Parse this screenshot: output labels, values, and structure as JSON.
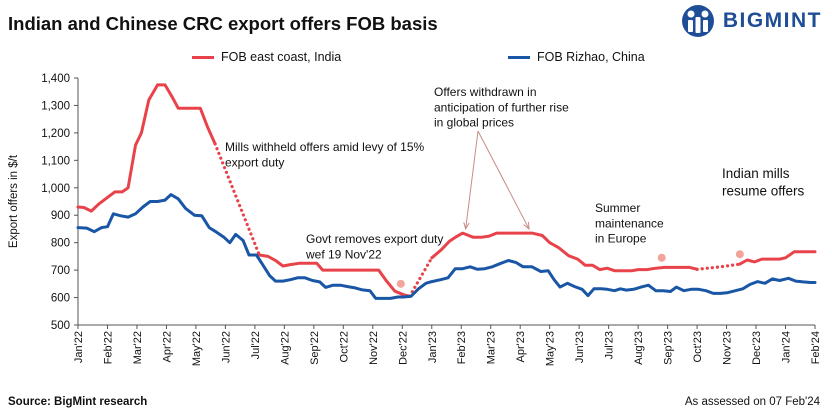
{
  "header": {
    "title": "Indian and Chinese CRC export offers FOB basis",
    "brand": "BIGMINT"
  },
  "footer": {
    "source": "Source: BigMint  research",
    "assessed": "As assessed on 07 Feb'24"
  },
  "colors": {
    "india": "#e8434a",
    "china": "#1a56a6",
    "dots": "#f2a49a"
  },
  "chart_data": {
    "type": "line",
    "title": "Indian and Chinese CRC export offers FOB basis",
    "xlabel": "",
    "ylabel": "Export offers in $/t",
    "ylim": [
      500,
      1400
    ],
    "yticks": [
      500,
      600,
      700,
      800,
      900,
      1000,
      1100,
      1200,
      1300,
      1400
    ],
    "ytick_labels": [
      "500",
      "600",
      "700",
      "800",
      "900",
      "1,000",
      "1,100",
      "1,200",
      "1,300",
      "1,400"
    ],
    "grid": false,
    "legend_position": "top",
    "x_tick_labels": [
      "Jan'22",
      "Feb'22",
      "Mar'22",
      "Apr'22",
      "May'22",
      "Jun'22",
      "Jul'22",
      "Aug'22",
      "Sep'22",
      "Oct'22",
      "Nov'22",
      "Dec'22",
      "Jan'23",
      "Feb'23",
      "Mar'23",
      "Apr'23",
      "May'23",
      "Jun'23",
      "Jul'23",
      "Aug'23",
      "Sep'23",
      "Oct'23",
      "Nov'23",
      "Dec'23",
      "Jan'24",
      "Feb'24"
    ],
    "series": [
      {
        "name": "FOB east coast, India",
        "segments": [
          {
            "style": "solid",
            "points": [
              [
                0,
                930
              ],
              [
                0.2,
                928
              ],
              [
                0.45,
                915
              ],
              [
                0.7,
                940
              ],
              [
                1.0,
                965
              ],
              [
                1.25,
                985
              ],
              [
                1.5,
                985
              ],
              [
                1.7,
                1000
              ],
              [
                1.95,
                1155
              ],
              [
                2.15,
                1200
              ],
              [
                2.4,
                1320
              ],
              [
                2.7,
                1375
              ],
              [
                2.95,
                1375
              ],
              [
                3.2,
                1330
              ],
              [
                3.4,
                1290
              ],
              [
                3.7,
                1290
              ],
              [
                4.0,
                1290
              ],
              [
                4.15,
                1290
              ],
              [
                4.4,
                1220
              ],
              [
                4.65,
                1160
              ]
            ]
          },
          {
            "style": "dotted",
            "points": [
              [
                4.65,
                1160
              ],
              [
                6.15,
                755
              ]
            ]
          },
          {
            "style": "solid",
            "points": [
              [
                6.15,
                755
              ],
              [
                6.45,
                750
              ],
              [
                6.7,
                735
              ],
              [
                6.95,
                715
              ],
              [
                7.2,
                720
              ],
              [
                7.5,
                725
              ],
              [
                7.8,
                725
              ],
              [
                8.1,
                725
              ],
              [
                8.3,
                700
              ],
              [
                8.6,
                700
              ],
              [
                9.0,
                700
              ],
              [
                9.3,
                700
              ],
              [
                9.6,
                700
              ],
              [
                10.0,
                700
              ],
              [
                10.2,
                700
              ],
              [
                10.45,
                662
              ],
              [
                10.75,
                623
              ],
              [
                11.05,
                610
              ],
              [
                11.25,
                605
              ]
            ]
          },
          {
            "style": "dotted",
            "points": [
              [
                11.25,
                605
              ],
              [
                12.0,
                745
              ]
            ]
          },
          {
            "style": "solid",
            "points": [
              [
                12.0,
                745
              ],
              [
                12.3,
                772
              ],
              [
                12.6,
                805
              ],
              [
                12.85,
                823
              ],
              [
                13.05,
                835
              ],
              [
                13.4,
                820
              ],
              [
                13.7,
                820
              ],
              [
                13.95,
                824
              ],
              [
                14.2,
                835
              ],
              [
                14.5,
                835
              ],
              [
                14.8,
                835
              ],
              [
                15.1,
                835
              ],
              [
                15.4,
                835
              ],
              [
                15.75,
                826
              ],
              [
                16.0,
                800
              ],
              [
                16.3,
                782
              ],
              [
                16.65,
                752
              ],
              [
                16.95,
                740
              ],
              [
                17.2,
                718
              ],
              [
                17.45,
                718
              ],
              [
                17.7,
                702
              ],
              [
                17.95,
                707
              ],
              [
                18.2,
                698
              ],
              [
                18.5,
                698
              ],
              [
                18.8,
                698
              ],
              [
                19.0,
                702
              ],
              [
                19.3,
                702
              ],
              [
                19.6,
                707
              ],
              [
                19.9,
                710
              ],
              [
                20.2,
                710
              ],
              [
                20.5,
                710
              ],
              [
                20.75,
                710
              ],
              [
                21.0,
                703
              ]
            ]
          },
          {
            "style": "dotted",
            "points": [
              [
                21.0,
                703
              ],
              [
                21.8,
                712
              ],
              [
                22.45,
                722
              ]
            ]
          },
          {
            "style": "solid",
            "points": [
              [
                22.45,
                722
              ],
              [
                22.7,
                737
              ],
              [
                22.95,
                730
              ],
              [
                23.2,
                740
              ],
              [
                23.5,
                740
              ],
              [
                23.8,
                740
              ],
              [
                24.0,
                745
              ],
              [
                24.3,
                767
              ],
              [
                24.6,
                767
              ],
              [
                25.0,
                767
              ]
            ]
          }
        ]
      },
      {
        "name": "FOB Rizhao, China",
        "segments": [
          {
            "style": "solid",
            "points": [
              [
                0,
                855
              ],
              [
                0.3,
                853
              ],
              [
                0.55,
                840
              ],
              [
                0.8,
                855
              ],
              [
                1.0,
                858
              ],
              [
                1.2,
                905
              ],
              [
                1.45,
                898
              ],
              [
                1.7,
                893
              ],
              [
                1.95,
                905
              ],
              [
                2.2,
                930
              ],
              [
                2.45,
                950
              ],
              [
                2.7,
                950
              ],
              [
                2.95,
                955
              ],
              [
                3.15,
                975
              ],
              [
                3.4,
                960
              ],
              [
                3.65,
                925
              ],
              [
                3.95,
                900
              ],
              [
                4.2,
                898
              ],
              [
                4.45,
                855
              ],
              [
                4.7,
                838
              ],
              [
                4.95,
                820
              ],
              [
                5.15,
                800
              ],
              [
                5.35,
                830
              ],
              [
                5.6,
                808
              ],
              [
                5.8,
                755
              ],
              [
                6.05,
                755
              ],
              [
                6.25,
                722
              ],
              [
                6.5,
                680
              ],
              [
                6.7,
                660
              ],
              [
                6.95,
                660
              ],
              [
                7.2,
                665
              ],
              [
                7.45,
                672
              ],
              [
                7.7,
                672
              ],
              [
                7.95,
                662
              ],
              [
                8.2,
                657
              ],
              [
                8.4,
                637
              ],
              [
                8.65,
                645
              ],
              [
                8.9,
                645
              ],
              [
                9.15,
                640
              ],
              [
                9.4,
                635
              ],
              [
                9.65,
                628
              ],
              [
                9.9,
                625
              ],
              [
                10.1,
                597
              ],
              [
                10.35,
                597
              ],
              [
                10.6,
                597
              ],
              [
                10.85,
                602
              ],
              [
                11.05,
                602
              ],
              [
                11.3,
                605
              ],
              [
                11.55,
                632
              ],
              [
                11.8,
                652
              ],
              [
                12.0,
                658
              ],
              [
                12.3,
                665
              ],
              [
                12.55,
                672
              ],
              [
                12.8,
                705
              ],
              [
                13.05,
                705
              ],
              [
                13.3,
                712
              ],
              [
                13.55,
                703
              ],
              [
                13.8,
                705
              ],
              [
                14.05,
                712
              ],
              [
                14.3,
                723
              ],
              [
                14.6,
                735
              ],
              [
                14.85,
                728
              ],
              [
                15.1,
                712
              ],
              [
                15.4,
                712
              ],
              [
                15.7,
                695
              ],
              [
                15.95,
                698
              ],
              [
                16.15,
                665
              ],
              [
                16.35,
                638
              ],
              [
                16.6,
                652
              ],
              [
                16.85,
                640
              ],
              [
                17.1,
                630
              ],
              [
                17.3,
                607
              ],
              [
                17.5,
                632
              ],
              [
                17.75,
                632
              ],
              [
                17.95,
                630
              ],
              [
                18.2,
                625
              ],
              [
                18.4,
                632
              ],
              [
                18.6,
                627
              ],
              [
                18.85,
                630
              ],
              [
                19.1,
                638
              ],
              [
                19.35,
                645
              ],
              [
                19.6,
                625
              ],
              [
                19.85,
                625
              ],
              [
                20.1,
                622
              ],
              [
                20.3,
                638
              ],
              [
                20.55,
                625
              ],
              [
                20.8,
                630
              ],
              [
                21.05,
                630
              ],
              [
                21.3,
                625
              ],
              [
                21.55,
                615
              ],
              [
                21.8,
                615
              ],
              [
                22.05,
                618
              ],
              [
                22.3,
                625
              ],
              [
                22.55,
                632
              ],
              [
                22.8,
                648
              ],
              [
                23.05,
                658
              ],
              [
                23.3,
                652
              ],
              [
                23.55,
                668
              ],
              [
                23.8,
                662
              ],
              [
                24.1,
                670
              ],
              [
                24.35,
                660
              ],
              [
                24.6,
                657
              ],
              [
                24.85,
                655
              ],
              [
                25.0,
                655
              ]
            ]
          }
        ]
      }
    ],
    "annotations": [
      {
        "lines": [
          "Mills withheld offers amid levy of 15%",
          "export duty"
        ]
      },
      {
        "lines": [
          "Govt removes export duty",
          "wef 19 Nov'22"
        ]
      },
      {
        "lines": [
          "Offers withdrawn in",
          "anticipation of further rise",
          "in global prices"
        ]
      },
      {
        "lines": [
          "Summer",
          "maintenance",
          "in Europe"
        ]
      },
      {
        "lines": [
          "Indian mills",
          "resume offers"
        ]
      }
    ],
    "markers": [
      {
        "x": 10.95,
        "y": 650
      },
      {
        "x": 19.8,
        "y": 745
      },
      {
        "x": 22.45,
        "y": 758
      }
    ],
    "arrows": [
      {
        "from_annotation": 2,
        "to": [
          13.15,
          850
        ]
      },
      {
        "from_annotation": 2,
        "to": [
          15.3,
          850
        ]
      }
    ]
  }
}
